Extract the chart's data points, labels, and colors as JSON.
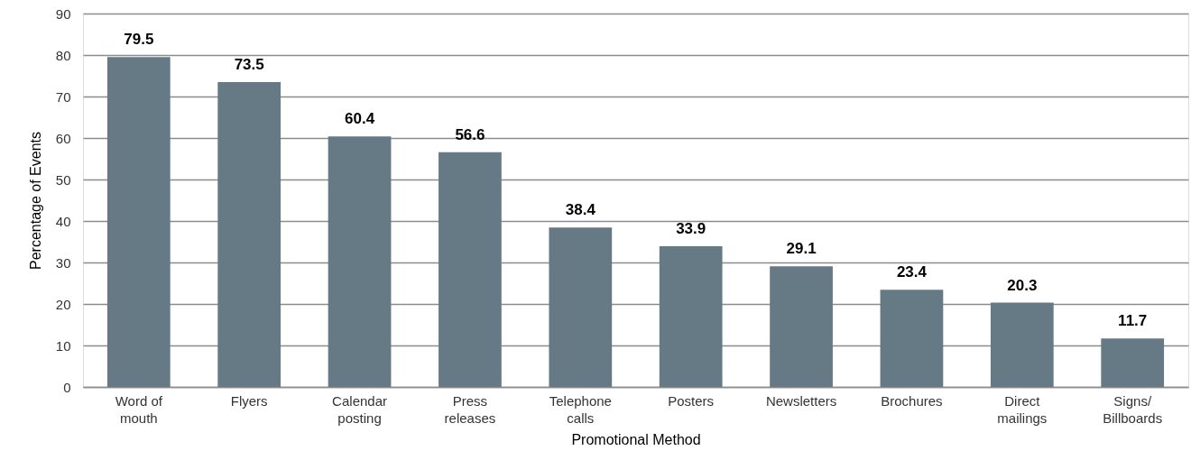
{
  "chart_data": {
    "type": "bar",
    "xlabel": "Promotional Method",
    "ylabel": "Percentage of Events",
    "categories": [
      "Word of mouth",
      "Flyers",
      "Calendar posting",
      "Press releases",
      "Telephone calls",
      "Posters",
      "Newsletters",
      "Brochures",
      "Direct mailings",
      "Signs/Billboards"
    ],
    "values": [
      79.5,
      73.5,
      60.4,
      56.6,
      38.4,
      33.9,
      29.1,
      23.4,
      20.3,
      11.7
    ],
    "color": "#667a86",
    "ylim": [
      0,
      90
    ],
    "yticks": [
      0,
      10,
      20,
      30,
      40,
      50,
      60,
      70,
      80,
      90
    ],
    "grid": "y",
    "data_labels": true
  }
}
